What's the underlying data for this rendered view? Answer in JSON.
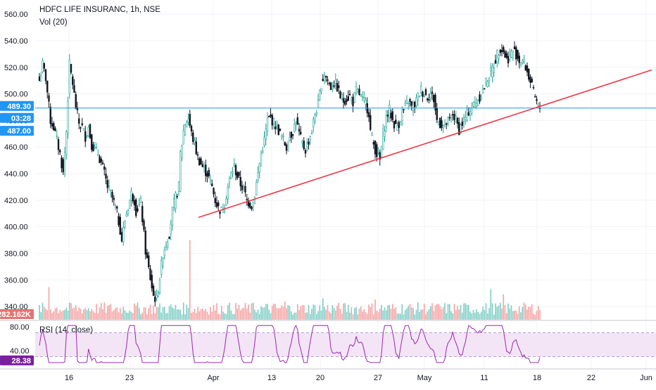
{
  "header": {
    "title": "HDFC LIFE INSURANC, 1h, NSE",
    "volume_label": "Vol (20)",
    "rsi_label": "RSI (14, close)"
  },
  "colors": {
    "up": "#26a69a",
    "down": "#131722",
    "vol_up": "#7fcdc5",
    "vol_down": "#f4a3a3",
    "price_line": "#2196f3",
    "trendline": "#f23645",
    "rsi_line": "#9c27b0",
    "rsi_band": "#f3e5f5",
    "rsi_badge": "#7b1fa2",
    "grid": "#f0f3fa",
    "axis_text": "#131722"
  },
  "badges": {
    "price": "489.30",
    "countdown": "03:28",
    "trend_value": "487.00",
    "volume": "282.162K",
    "rsi": "28.38"
  },
  "chart_data": {
    "type": "candlestick",
    "title": "HDFC LIFE INSURANC, 1h, NSE",
    "price_axis": {
      "range": [
        330,
        568
      ],
      "ticks": [
        340,
        360,
        380,
        400,
        420,
        440,
        460,
        480,
        500,
        520,
        540,
        560
      ],
      "tick_labels": [
        "340.00",
        "360.00",
        "380.00",
        "400.00",
        "420.00",
        "440.00",
        "460.00",
        "480.00",
        "500.00",
        "520.00",
        "540.00",
        "560.00"
      ]
    },
    "time_axis": {
      "labels": [
        "16",
        "23",
        "Apr",
        "13",
        "20",
        "27",
        "May",
        "11",
        "18",
        "22",
        "Jun"
      ]
    },
    "last_price": 489.3,
    "trendline": {
      "from": {
        "date": "Mar 30",
        "price": 407
      },
      "to": {
        "date": "Jun",
        "price": 518
      },
      "value_at_last_bar": 487.0
    },
    "price_path": [
      [
        0,
        510
      ],
      [
        2,
        522
      ],
      [
        4,
        512
      ],
      [
        7,
        480
      ],
      [
        9,
        475
      ],
      [
        11,
        465
      ],
      [
        13,
        455
      ],
      [
        15,
        440
      ],
      [
        17,
        472
      ],
      [
        19,
        522
      ],
      [
        21,
        508
      ],
      [
        23,
        490
      ],
      [
        25,
        478
      ],
      [
        27,
        475
      ],
      [
        29,
        468
      ],
      [
        31,
        475
      ],
      [
        33,
        462
      ],
      [
        35,
        458
      ],
      [
        37,
        455
      ],
      [
        39,
        448
      ],
      [
        41,
        440
      ],
      [
        43,
        430
      ],
      [
        45,
        425
      ],
      [
        47,
        418
      ],
      [
        49,
        410
      ],
      [
        51,
        398
      ],
      [
        52,
        390
      ],
      [
        54,
        405
      ],
      [
        56,
        415
      ],
      [
        58,
        425
      ],
      [
        60,
        420
      ],
      [
        61,
        412
      ],
      [
        64,
        418
      ],
      [
        67,
        382
      ],
      [
        69,
        368
      ],
      [
        72,
        348
      ],
      [
        74,
        345
      ],
      [
        76,
        362
      ],
      [
        78,
        380
      ],
      [
        80,
        388
      ],
      [
        82,
        395
      ],
      [
        84,
        412
      ],
      [
        86,
        422
      ],
      [
        88,
        430
      ],
      [
        89,
        455
      ],
      [
        90,
        462
      ],
      [
        91,
        472
      ],
      [
        92,
        478
      ],
      [
        94,
        482
      ],
      [
        96,
        470
      ],
      [
        98,
        462
      ],
      [
        100,
        452
      ],
      [
        103,
        445
      ],
      [
        106,
        440
      ],
      [
        109,
        430
      ],
      [
        111,
        420
      ],
      [
        113,
        414
      ],
      [
        115,
        412
      ],
      [
        117,
        418
      ],
      [
        119,
        430
      ],
      [
        121,
        440
      ],
      [
        123,
        445
      ],
      [
        125,
        438
      ],
      [
        127,
        432
      ],
      [
        129,
        428
      ],
      [
        131,
        420
      ],
      [
        134,
        416
      ],
      [
        136,
        425
      ],
      [
        138,
        440
      ],
      [
        140,
        455
      ],
      [
        142,
        465
      ],
      [
        144,
        480
      ],
      [
        146,
        482
      ],
      [
        148,
        478
      ],
      [
        150,
        475
      ],
      [
        152,
        470
      ],
      [
        154,
        465
      ],
      [
        156,
        460
      ],
      [
        158,
        468
      ],
      [
        160,
        472
      ],
      [
        162,
        480
      ],
      [
        164,
        470
      ],
      [
        166,
        462
      ],
      [
        168,
        458
      ],
      [
        170,
        465
      ],
      [
        172,
        472
      ],
      [
        174,
        485
      ],
      [
        176,
        492
      ],
      [
        178,
        508
      ],
      [
        180,
        515
      ],
      [
        182,
        510
      ],
      [
        184,
        505
      ],
      [
        186,
        508
      ],
      [
        188,
        505
      ],
      [
        190,
        498
      ],
      [
        192,
        495
      ],
      [
        194,
        497
      ],
      [
        196,
        498
      ],
      [
        198,
        494
      ],
      [
        200,
        502
      ],
      [
        202,
        500
      ],
      [
        204,
        495
      ],
      [
        206,
        493
      ],
      [
        208,
        486
      ],
      [
        209,
        472
      ],
      [
        211,
        462
      ],
      [
        213,
        455
      ],
      [
        215,
        450
      ],
      [
        217,
        470
      ],
      [
        219,
        482
      ],
      [
        221,
        488
      ],
      [
        223,
        480
      ],
      [
        225,
        475
      ],
      [
        227,
        478
      ],
      [
        229,
        485
      ],
      [
        231,
        490
      ],
      [
        233,
        495
      ],
      [
        235,
        490
      ],
      [
        237,
        492
      ],
      [
        239,
        498
      ],
      [
        241,
        503
      ],
      [
        243,
        500
      ],
      [
        245,
        498
      ],
      [
        247,
        500
      ],
      [
        249,
        496
      ],
      [
        251,
        480
      ],
      [
        253,
        478
      ],
      [
        255,
        476
      ],
      [
        257,
        478
      ],
      [
        259,
        480
      ],
      [
        261,
        485
      ],
      [
        263,
        480
      ],
      [
        265,
        473
      ],
      [
        267,
        478
      ],
      [
        269,
        482
      ],
      [
        271,
        487
      ],
      [
        273,
        490
      ],
      [
        275,
        493
      ],
      [
        277,
        496
      ],
      [
        279,
        500
      ],
      [
        281,
        505
      ],
      [
        283,
        512
      ],
      [
        285,
        516
      ],
      [
        287,
        522
      ],
      [
        289,
        530
      ],
      [
        291,
        535
      ],
      [
        293,
        532
      ],
      [
        295,
        526
      ],
      [
        297,
        528
      ],
      [
        299,
        533
      ],
      [
        301,
        530
      ],
      [
        303,
        525
      ],
      [
        305,
        525
      ],
      [
        307,
        520
      ],
      [
        309,
        513
      ],
      [
        311,
        505
      ],
      [
        313,
        497
      ],
      [
        315,
        490
      ],
      [
        316,
        489.3
      ]
    ],
    "volume": {
      "series_name": "Vol (20)",
      "last_value": "282.162K",
      "spikes": [
        [
          6,
          0.32
        ],
        [
          95,
          0.78
        ],
        [
          155,
          0.18
        ],
        [
          179,
          0.21
        ],
        [
          212,
          0.2
        ],
        [
          285,
          0.3
        ],
        [
          293,
          0.25
        ]
      ]
    },
    "rsi": {
      "series_name": "RSI (14, close)",
      "range": [
        0,
        100
      ],
      "ticks": [
        40,
        80
      ],
      "band": [
        30,
        70
      ],
      "last_value": 28.38
    }
  }
}
